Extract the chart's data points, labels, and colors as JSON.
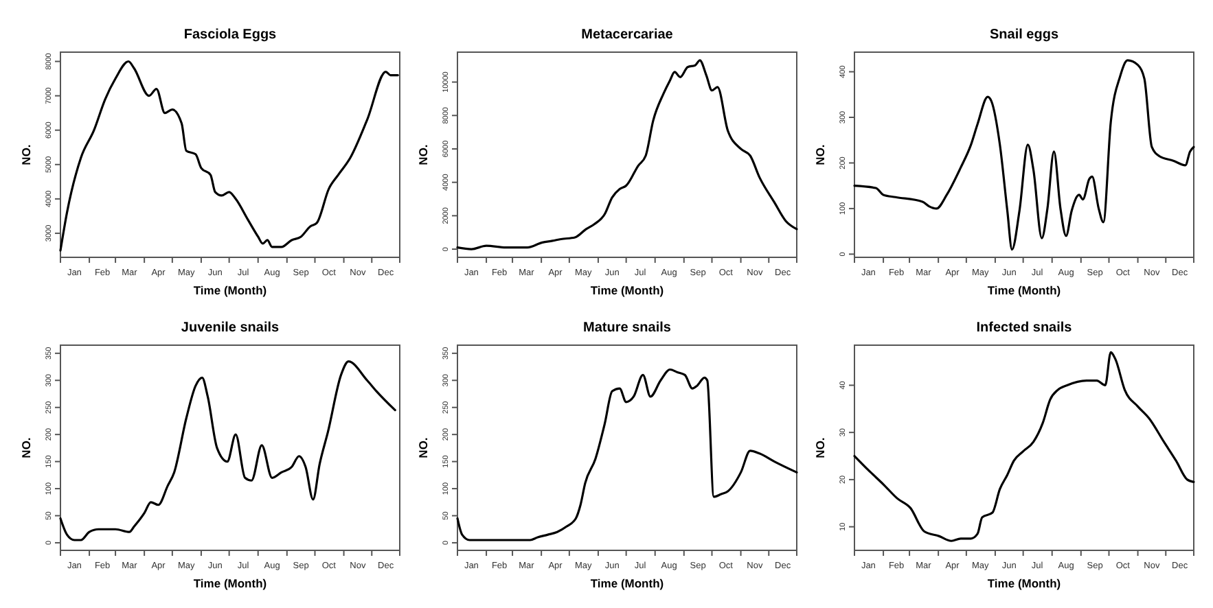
{
  "chart_data": [
    {
      "type": "line",
      "title": "Fasciola Eggs",
      "xlabel": "Time (Month)",
      "ylabel": "NO.",
      "color": "#000000",
      "xlim": [
        "--01-01",
        "--12-31"
      ],
      "ylim": [
        2300,
        8270
      ],
      "yticks": [
        3000,
        4000,
        5000,
        6000,
        7000,
        8000
      ],
      "xticks": [
        {
          "value": "--01-01",
          "label": null
        },
        {
          "value": "--01-16",
          "label": "Jan"
        },
        {
          "value": "--02-01",
          "label": null
        },
        {
          "value": "--02-15",
          "label": "Feb"
        },
        {
          "value": "--03-01",
          "label": null
        },
        {
          "value": "--03-16",
          "label": "Mar"
        },
        {
          "value": "--04-01",
          "label": null
        },
        {
          "value": "--04-16",
          "label": "Apr"
        },
        {
          "value": "--05-01",
          "label": null
        },
        {
          "value": "--05-16",
          "label": "May"
        },
        {
          "value": "--06-01",
          "label": null
        },
        {
          "value": "--06-16",
          "label": "Jun"
        },
        {
          "value": "--07-01",
          "label": null
        },
        {
          "value": "--07-16",
          "label": "Jul"
        },
        {
          "value": "--08-01",
          "label": null
        },
        {
          "value": "--08-16",
          "label": "Aug"
        },
        {
          "value": "--09-01",
          "label": null
        },
        {
          "value": "--09-16",
          "label": "Sep"
        },
        {
          "value": "--10-01",
          "label": null
        },
        {
          "value": "--10-16",
          "label": "Oct"
        },
        {
          "value": "--11-01",
          "label": null
        },
        {
          "value": "--11-16",
          "label": "Nov"
        },
        {
          "value": "--12-01",
          "label": null
        },
        {
          "value": "--12-16",
          "label": "Dec"
        },
        {
          "value": "--12-31",
          "label": null
        }
      ],
      "x": [
        "--01-01",
        "--01-08",
        "--01-23",
        "--02-06",
        "--02-18",
        "--03-01",
        "--03-15",
        "--03-21",
        "--04-06",
        "--04-14",
        "--04-23",
        "--05-01",
        "--05-11",
        "--05-16",
        "--05-26",
        "--06-01",
        "--06-11",
        "--06-16",
        "--06-23",
        "--07-01",
        "--07-08",
        "--07-21",
        "--08-01",
        "--08-06",
        "--08-11",
        "--08-16",
        "--08-26",
        "--09-06",
        "--09-16",
        "--09-26",
        "--10-03",
        "--10-16",
        "--10-26",
        "--11-08",
        "--11-26",
        "--12-16",
        "--12-21",
        "--12-29"
      ],
      "values": [
        2500,
        3600,
        5200,
        6000,
        6900,
        7500,
        8000,
        7800,
        7000,
        7200,
        6500,
        6600,
        6200,
        5400,
        5300,
        4900,
        4700,
        4200,
        4100,
        4200,
        4000,
        3400,
        2900,
        2700,
        2800,
        2600,
        2600,
        2800,
        2900,
        3200,
        3300,
        4300,
        4700,
        5200,
        6300,
        7700,
        7600,
        7600
      ]
    },
    {
      "type": "line",
      "title": "Metacercariae",
      "xlabel": "Time (Month)",
      "ylabel": "NO.",
      "color": "#000000",
      "xlim": [
        "--01-01",
        "--12-31"
      ],
      "ylim": [
        -490,
        11790
      ],
      "yticks": [
        0,
        2000,
        4000,
        6000,
        8000,
        10000
      ],
      "xticks": [
        {
          "value": "--01-01",
          "label": null
        },
        {
          "value": "--01-16",
          "label": "Jan"
        },
        {
          "value": "--02-01",
          "label": null
        },
        {
          "value": "--02-15",
          "label": "Feb"
        },
        {
          "value": "--03-01",
          "label": null
        },
        {
          "value": "--03-16",
          "label": "Mar"
        },
        {
          "value": "--04-01",
          "label": null
        },
        {
          "value": "--04-16",
          "label": "Apr"
        },
        {
          "value": "--05-01",
          "label": null
        },
        {
          "value": "--05-16",
          "label": "May"
        },
        {
          "value": "--06-01",
          "label": null
        },
        {
          "value": "--06-16",
          "label": "Jun"
        },
        {
          "value": "--07-01",
          "label": null
        },
        {
          "value": "--07-16",
          "label": "Jul"
        },
        {
          "value": "--08-01",
          "label": null
        },
        {
          "value": "--08-16",
          "label": "Aug"
        },
        {
          "value": "--09-01",
          "label": null
        },
        {
          "value": "--09-16",
          "label": "Sep"
        },
        {
          "value": "--10-01",
          "label": null
        },
        {
          "value": "--10-16",
          "label": "Oct"
        },
        {
          "value": "--11-01",
          "label": null
        },
        {
          "value": "--11-16",
          "label": "Nov"
        },
        {
          "value": "--12-01",
          "label": null
        },
        {
          "value": "--12-16",
          "label": "Dec"
        },
        {
          "value": "--12-31",
          "label": null
        }
      ],
      "x": [
        "--01-01",
        "--01-16",
        "--02-01",
        "--02-22",
        "--03-17",
        "--04-02",
        "--04-13",
        "--04-22",
        "--05-07",
        "--05-19",
        "--05-28",
        "--06-08",
        "--06-16",
        "--06-24",
        "--07-01",
        "--07-14",
        "--07-22",
        "--07-30",
        "--08-10",
        "--08-17",
        "--08-22",
        "--08-28",
        "--09-05",
        "--09-13",
        "--09-18",
        "--09-25",
        "--10-01",
        "--10-07",
        "--10-18",
        "--11-01",
        "--11-11",
        "--11-21",
        "--12-07",
        "--12-19",
        "--12-31"
      ],
      "values": [
        100,
        0,
        200,
        100,
        100,
        400,
        500,
        600,
        700,
        1200,
        1500,
        2100,
        3100,
        3600,
        3800,
        5000,
        5600,
        7700,
        9300,
        10100,
        10600,
        10300,
        10900,
        11000,
        11300,
        10400,
        9500,
        9700,
        7100,
        6000,
        5600,
        4300,
        2800,
        1700,
        1200
      ]
    },
    {
      "type": "line",
      "title": "Snail eggs",
      "xlabel": "Time (Month)",
      "ylabel": "NO.",
      "color": "#000000",
      "xlim": [
        "--01-01",
        "--12-31"
      ],
      "ylim": [
        -7,
        443
      ],
      "yticks": [
        0,
        100,
        200,
        300,
        400
      ],
      "xticks": [
        {
          "value": "--01-01",
          "label": null
        },
        {
          "value": "--01-16",
          "label": "Jan"
        },
        {
          "value": "--02-01",
          "label": null
        },
        {
          "value": "--02-15",
          "label": "Feb"
        },
        {
          "value": "--03-01",
          "label": null
        },
        {
          "value": "--03-16",
          "label": "Mar"
        },
        {
          "value": "--04-01",
          "label": null
        },
        {
          "value": "--04-16",
          "label": "Apr"
        },
        {
          "value": "--05-01",
          "label": null
        },
        {
          "value": "--05-16",
          "label": "May"
        },
        {
          "value": "--06-01",
          "label": null
        },
        {
          "value": "--06-16",
          "label": "Jun"
        },
        {
          "value": "--07-01",
          "label": null
        },
        {
          "value": "--07-16",
          "label": "Jul"
        },
        {
          "value": "--08-01",
          "label": null
        },
        {
          "value": "--08-16",
          "label": "Aug"
        },
        {
          "value": "--09-01",
          "label": null
        },
        {
          "value": "--09-16",
          "label": "Sep"
        },
        {
          "value": "--10-01",
          "label": null
        },
        {
          "value": "--10-16",
          "label": "Oct"
        },
        {
          "value": "--11-01",
          "label": null
        },
        {
          "value": "--11-16",
          "label": "Nov"
        },
        {
          "value": "--12-01",
          "label": null
        },
        {
          "value": "--12-16",
          "label": "Dec"
        },
        {
          "value": "--12-31",
          "label": null
        }
      ],
      "x": [
        "--01-01",
        "--01-24",
        "--02-01",
        "--02-14",
        "--03-15",
        "--03-22",
        "--03-30",
        "--04-10",
        "--04-25",
        "--05-06",
        "--05-13",
        "--05-24",
        "--05-28",
        "--06-06",
        "--06-14",
        "--06-19",
        "--06-27",
        "--07-06",
        "--07-12",
        "--07-21",
        "--07-27",
        "--08-03",
        "--08-10",
        "--08-16",
        "--08-22",
        "--08-30",
        "--09-03",
        "--09-10",
        "--09-13",
        "--09-20",
        "--09-25",
        "--10-03",
        "--10-13",
        "--10-21",
        "--11-01",
        "--11-08",
        "--11-16",
        "--11-24",
        "--12-09",
        "--12-22",
        "--12-27",
        "--12-31"
      ],
      "values": [
        150,
        145,
        130,
        125,
        115,
        105,
        100,
        130,
        190,
        240,
        285,
        345,
        335,
        240,
        95,
        10,
        95,
        240,
        185,
        35,
        100,
        225,
        100,
        40,
        95,
        130,
        120,
        165,
        170,
        100,
        70,
        290,
        390,
        425,
        415,
        385,
        235,
        215,
        205,
        195,
        225,
        235
      ]
    },
    {
      "type": "line",
      "title": "Juvenile snails",
      "xlabel": "Time (Month)",
      "ylabel": "NO.",
      "color": "#000000",
      "xlim": [
        "--01-01",
        "--12-31"
      ],
      "ylim": [
        -14,
        365
      ],
      "yticks": [
        0,
        50,
        100,
        150,
        200,
        250,
        300,
        350
      ],
      "xticks": [
        {
          "value": "--01-01",
          "label": null
        },
        {
          "value": "--01-16",
          "label": "Jan"
        },
        {
          "value": "--02-01",
          "label": null
        },
        {
          "value": "--02-15",
          "label": "Feb"
        },
        {
          "value": "--03-01",
          "label": null
        },
        {
          "value": "--03-16",
          "label": "Mar"
        },
        {
          "value": "--04-01",
          "label": null
        },
        {
          "value": "--04-16",
          "label": "Apr"
        },
        {
          "value": "--05-01",
          "label": null
        },
        {
          "value": "--05-16",
          "label": "May"
        },
        {
          "value": "--06-01",
          "label": null
        },
        {
          "value": "--06-16",
          "label": "Jun"
        },
        {
          "value": "--07-01",
          "label": null
        },
        {
          "value": "--07-16",
          "label": "Jul"
        },
        {
          "value": "--08-01",
          "label": null
        },
        {
          "value": "--08-16",
          "label": "Aug"
        },
        {
          "value": "--09-01",
          "label": null
        },
        {
          "value": "--09-16",
          "label": "Sep"
        },
        {
          "value": "--10-01",
          "label": null
        },
        {
          "value": "--10-16",
          "label": "Oct"
        },
        {
          "value": "--11-01",
          "label": null
        },
        {
          "value": "--11-16",
          "label": "Nov"
        },
        {
          "value": "--12-01",
          "label": null
        },
        {
          "value": "--12-16",
          "label": "Dec"
        },
        {
          "value": "--12-31",
          "label": null
        }
      ],
      "x": [
        "--01-01",
        "--01-08",
        "--01-16",
        "--01-23",
        "--02-01",
        "--02-11",
        "--03-01",
        "--03-16",
        "--03-21",
        "--04-01",
        "--04-08",
        "--04-16",
        "--04-26",
        "--05-03",
        "--05-16",
        "--05-26",
        "--06-02",
        "--06-08",
        "--06-18",
        "--06-29",
        "--07-08",
        "--07-18",
        "--07-25",
        "--08-05",
        "--08-16",
        "--08-26",
        "--09-06",
        "--09-14",
        "--09-21",
        "--09-29",
        "--10-06",
        "--10-15",
        "--10-29",
        "--11-06",
        "--11-26",
        "--12-06",
        "--12-26"
      ],
      "values": [
        45,
        15,
        5,
        5,
        20,
        25,
        25,
        20,
        30,
        55,
        75,
        70,
        105,
        130,
        230,
        290,
        305,
        270,
        175,
        150,
        200,
        120,
        115,
        180,
        120,
        130,
        140,
        160,
        140,
        80,
        145,
        205,
        310,
        335,
        300,
        280,
        245
      ]
    },
    {
      "type": "line",
      "title": "Mature snails",
      "xlabel": "Time (Month)",
      "ylabel": "NO.",
      "color": "#000000",
      "xlim": [
        "--01-01",
        "--12-31"
      ],
      "ylim": [
        -14,
        365
      ],
      "yticks": [
        0,
        50,
        100,
        150,
        200,
        250,
        300,
        350
      ],
      "xticks": [
        {
          "value": "--01-01",
          "label": null
        },
        {
          "value": "--01-16",
          "label": "Jan"
        },
        {
          "value": "--02-01",
          "label": null
        },
        {
          "value": "--02-15",
          "label": "Feb"
        },
        {
          "value": "--03-01",
          "label": null
        },
        {
          "value": "--03-16",
          "label": "Mar"
        },
        {
          "value": "--04-01",
          "label": null
        },
        {
          "value": "--04-16",
          "label": "Apr"
        },
        {
          "value": "--05-01",
          "label": null
        },
        {
          "value": "--05-16",
          "label": "May"
        },
        {
          "value": "--06-01",
          "label": null
        },
        {
          "value": "--06-16",
          "label": "Jun"
        },
        {
          "value": "--07-01",
          "label": null
        },
        {
          "value": "--07-16",
          "label": "Jul"
        },
        {
          "value": "--08-01",
          "label": null
        },
        {
          "value": "--08-16",
          "label": "Aug"
        },
        {
          "value": "--09-01",
          "label": null
        },
        {
          "value": "--09-16",
          "label": "Sep"
        },
        {
          "value": "--10-01",
          "label": null
        },
        {
          "value": "--10-16",
          "label": "Oct"
        },
        {
          "value": "--11-01",
          "label": null
        },
        {
          "value": "--11-16",
          "label": "Nov"
        },
        {
          "value": "--12-01",
          "label": null
        },
        {
          "value": "--12-16",
          "label": "Dec"
        },
        {
          "value": "--12-31",
          "label": null
        }
      ],
      "x": [
        "--01-01",
        "--01-06",
        "--01-14",
        "--01-27",
        "--03-20",
        "--03-28",
        "--04-08",
        "--04-18",
        "--04-28",
        "--05-08",
        "--05-13",
        "--05-18",
        "--05-29",
        "--06-08",
        "--06-16",
        "--06-24",
        "--07-01",
        "--07-09",
        "--07-19",
        "--07-27",
        "--08-07",
        "--08-17",
        "--08-25",
        "--09-02",
        "--09-10",
        "--09-15",
        "--09-23",
        "--09-26",
        "--10-03",
        "--10-11",
        "--10-18",
        "--11-01",
        "--11-11",
        "--11-21",
        "--12-07",
        "--12-31"
      ],
      "values": [
        45,
        15,
        5,
        5,
        5,
        10,
        15,
        20,
        30,
        45,
        70,
        110,
        155,
        220,
        280,
        285,
        260,
        270,
        310,
        270,
        300,
        320,
        315,
        310,
        285,
        290,
        305,
        300,
        85,
        90,
        95,
        130,
        170,
        165,
        150,
        130
      ]
    },
    {
      "type": "line",
      "title": "Infected snails",
      "xlabel": "Time (Month)",
      "ylabel": "NO.",
      "color": "#000000",
      "xlim": [
        "--01-01",
        "--12-31"
      ],
      "ylim": [
        5,
        48.5
      ],
      "yticks": [
        10,
        20,
        30,
        40
      ],
      "xticks": [
        {
          "value": "--01-01",
          "label": null
        },
        {
          "value": "--01-16",
          "label": "Jan"
        },
        {
          "value": "--02-01",
          "label": null
        },
        {
          "value": "--02-15",
          "label": "Feb"
        },
        {
          "value": "--03-01",
          "label": null
        },
        {
          "value": "--03-16",
          "label": "Mar"
        },
        {
          "value": "--04-01",
          "label": null
        },
        {
          "value": "--04-16",
          "label": "Apr"
        },
        {
          "value": "--05-01",
          "label": null
        },
        {
          "value": "--05-16",
          "label": "May"
        },
        {
          "value": "--06-01",
          "label": null
        },
        {
          "value": "--06-16",
          "label": "Jun"
        },
        {
          "value": "--07-01",
          "label": null
        },
        {
          "value": "--07-16",
          "label": "Jul"
        },
        {
          "value": "--08-01",
          "label": null
        },
        {
          "value": "--08-16",
          "label": "Aug"
        },
        {
          "value": "--09-01",
          "label": null
        },
        {
          "value": "--09-16",
          "label": "Sep"
        },
        {
          "value": "--10-01",
          "label": null
        },
        {
          "value": "--10-16",
          "label": "Oct"
        },
        {
          "value": "--11-01",
          "label": null
        },
        {
          "value": "--11-16",
          "label": "Nov"
        },
        {
          "value": "--12-01",
          "label": null
        },
        {
          "value": "--12-16",
          "label": "Dec"
        },
        {
          "value": "--12-31",
          "label": null
        }
      ],
      "x": [
        "--01-01",
        "--01-16",
        "--02-01",
        "--02-16",
        "--03-02",
        "--03-17",
        "--04-02",
        "--04-15",
        "--04-25",
        "--05-06",
        "--05-13",
        "--05-18",
        "--05-29",
        "--06-06",
        "--06-14",
        "--06-21",
        "--07-01",
        "--07-12",
        "--07-22",
        "--07-30",
        "--08-07",
        "--08-17",
        "--09-07",
        "--09-18",
        "--09-27",
        "--10-03",
        "--10-08",
        "--10-18",
        "--11-01",
        "--11-13",
        "--11-29",
        "--12-12",
        "--12-24",
        "--12-31"
      ],
      "values": [
        25,
        22,
        19,
        16,
        14,
        9,
        8,
        7,
        7.5,
        7.5,
        8.5,
        12,
        13,
        18,
        21,
        24,
        26,
        28,
        32,
        37,
        39,
        40,
        41,
        41,
        40,
        47,
        45.5,
        39,
        35.5,
        33,
        28,
        24,
        20,
        19.5
      ]
    }
  ]
}
